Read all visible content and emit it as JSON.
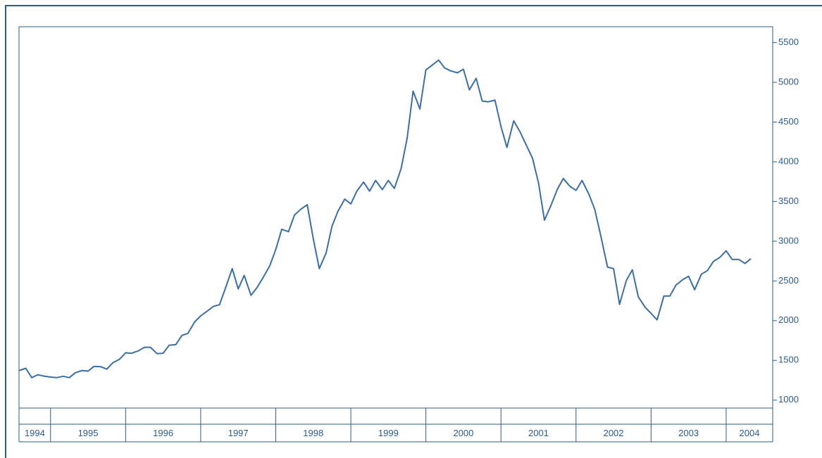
{
  "chart_data": {
    "type": "line",
    "color": "#3a6ea5",
    "x": [
      1994.58,
      1994.67,
      1994.75,
      1994.83,
      1994.92,
      1995.0,
      1995.08,
      1995.17,
      1995.25,
      1995.33,
      1995.42,
      1995.5,
      1995.58,
      1995.67,
      1995.75,
      1995.83,
      1995.92,
      1996.0,
      1996.08,
      1996.17,
      1996.25,
      1996.33,
      1996.42,
      1996.5,
      1996.58,
      1996.67,
      1996.75,
      1996.83,
      1996.92,
      1997.0,
      1997.08,
      1997.17,
      1997.25,
      1997.33,
      1997.42,
      1997.5,
      1997.58,
      1997.67,
      1997.75,
      1997.83,
      1997.92,
      1998.0,
      1998.08,
      1998.17,
      1998.25,
      1998.33,
      1998.42,
      1998.5,
      1998.58,
      1998.67,
      1998.75,
      1998.83,
      1998.92,
      1999.0,
      1999.08,
      1999.17,
      1999.25,
      1999.33,
      1999.42,
      1999.5,
      1999.58,
      1999.67,
      1999.75,
      1999.83,
      1999.92,
      2000.0,
      2000.08,
      2000.17,
      2000.25,
      2000.33,
      2000.42,
      2000.5,
      2000.58,
      2000.67,
      2000.75,
      2000.83,
      2000.92,
      2001.0,
      2001.08,
      2001.17,
      2001.25,
      2001.33,
      2001.42,
      2001.5,
      2001.58,
      2001.67,
      2001.75,
      2001.83,
      2001.92,
      2002.0,
      2002.08,
      2002.17,
      2002.25,
      2002.33,
      2002.42,
      2002.5,
      2002.58,
      2002.67,
      2002.75,
      2002.83,
      2002.92,
      2003.0,
      2003.08,
      2003.17,
      2003.25,
      2003.33,
      2003.42,
      2003.5,
      2003.58,
      2003.67,
      2003.75,
      2003.83,
      2003.92,
      2004.0,
      2004.08,
      2004.17,
      2004.25,
      2004.33
    ],
    "values": [
      1372,
      1400,
      1283,
      1320,
      1300,
      1290,
      1283,
      1300,
      1283,
      1345,
      1372,
      1365,
      1425,
      1420,
      1390,
      1470,
      1515,
      1595,
      1590,
      1620,
      1665,
      1665,
      1585,
      1590,
      1690,
      1700,
      1815,
      1840,
      1985,
      2060,
      2115,
      2180,
      2200,
      2410,
      2655,
      2400,
      2570,
      2320,
      2415,
      2540,
      2690,
      2895,
      3150,
      3120,
      3330,
      3400,
      3460,
      3030,
      2655,
      2850,
      3190,
      3380,
      3530,
      3470,
      3630,
      3745,
      3630,
      3765,
      3650,
      3765,
      3665,
      3915,
      4295,
      4890,
      4665,
      5155,
      5215,
      5280,
      5180,
      5145,
      5120,
      5165,
      4905,
      5050,
      4765,
      4755,
      4775,
      4445,
      4180,
      4515,
      4385,
      4225,
      4045,
      3735,
      3265,
      3460,
      3650,
      3790,
      3690,
      3640,
      3765,
      3595,
      3400,
      3070,
      2675,
      2655,
      2205,
      2505,
      2640,
      2300,
      2170,
      2090,
      2010,
      2310,
      2310,
      2445,
      2515,
      2560,
      2390,
      2585,
      2630,
      2745,
      2800,
      2880,
      2770,
      2770,
      2720,
      2780
    ],
    "xlim": [
      1994.58,
      2004.62
    ],
    "xticks": [
      1995,
      1996,
      1997,
      1998,
      1999,
      2000,
      2001,
      2002,
      2003,
      2004
    ],
    "categories": [
      "1994",
      "1995",
      "1996",
      "1997",
      "1998",
      "1999",
      "2000",
      "2001",
      "2002",
      "2003",
      "2004"
    ],
    "ylim": [
      900,
      5700
    ],
    "yticks": [
      1000,
      1500,
      2000,
      2500,
      3000,
      3500,
      4000,
      4500,
      5000,
      5500
    ],
    "y_axis_side": "right"
  }
}
